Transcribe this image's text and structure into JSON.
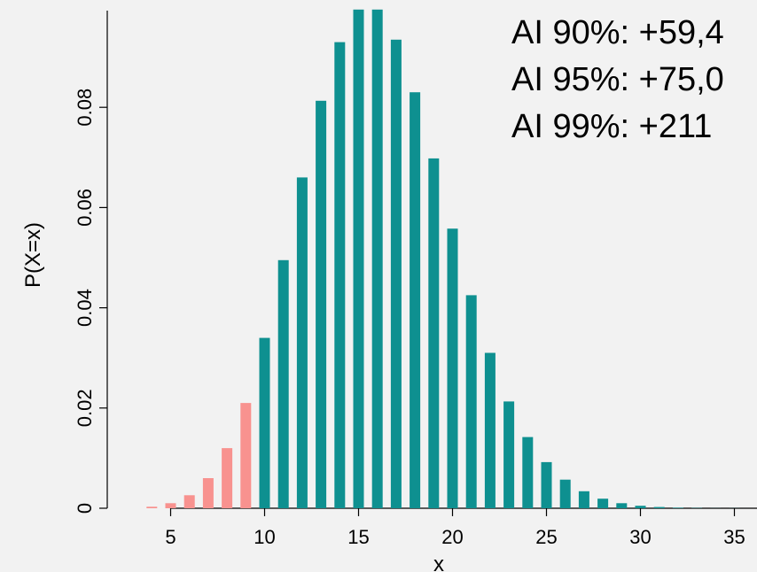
{
  "chart_data": {
    "type": "bar",
    "title": "",
    "xlabel": "x",
    "ylabel": "P(X=x)",
    "xlim": [
      1.5,
      38
    ],
    "ylim": [
      0,
      0.1
    ],
    "x_ticks": [
      5,
      10,
      15,
      20,
      25,
      30,
      35
    ],
    "y_ticks": [
      0,
      0.02,
      0.04,
      0.06,
      0.08
    ],
    "y_tick_labels": [
      "0",
      "0.02",
      "0.04",
      "0.06",
      "0.08"
    ],
    "grid": false,
    "colors": {
      "tail": "#f8928f",
      "main": "#0e9090",
      "background": "#f2f2f2"
    },
    "series": [
      {
        "x": [
          4,
          5,
          6,
          7,
          8,
          9
        ],
        "values": [
          0.0003,
          0.001,
          0.0026,
          0.006,
          0.012,
          0.021
        ]
      },
      {
        "x": [
          10,
          11,
          12,
          13,
          14,
          15,
          16,
          17,
          18,
          19,
          20,
          21,
          22,
          23,
          24,
          25,
          26,
          27,
          28,
          29,
          30,
          31,
          32,
          33,
          34,
          35,
          36,
          37
        ],
        "values": [
          0.034,
          0.0495,
          0.066,
          0.0813,
          0.093,
          0.0995,
          0.0995,
          0.0935,
          0.083,
          0.0698,
          0.0558,
          0.0425,
          0.031,
          0.0213,
          0.0142,
          0.0092,
          0.0057,
          0.0034,
          0.0019,
          0.001,
          0.0005,
          0.00025,
          0.0001,
          5e-05,
          2e-05,
          1e-05,
          5e-06,
          2e-06
        ]
      }
    ],
    "annotations": [
      "AI 90%: +59,4",
      "AI 95%: +75,0",
      "AI 99%: +211"
    ]
  }
}
